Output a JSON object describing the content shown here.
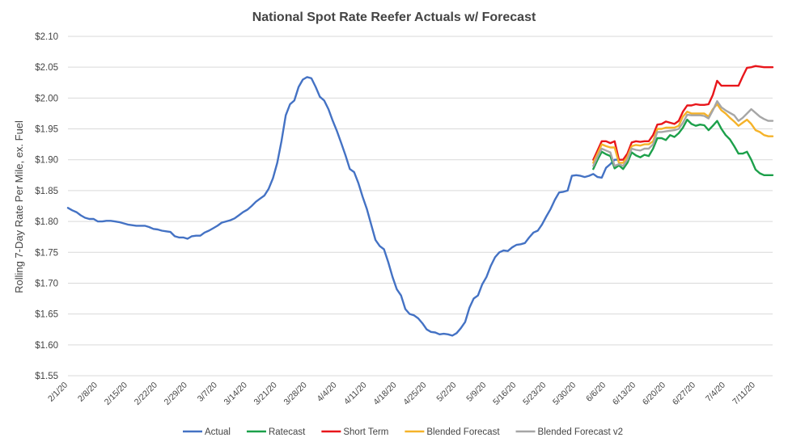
{
  "chart_data": {
    "type": "line",
    "title": "National Spot Rate Reefer Actuals w/ Forecast",
    "ylabel": "Rolling 7-Day Rate Per Mile, ex. Fuel",
    "xlabel": "",
    "ylim": [
      1.55,
      2.1
    ],
    "yticks": [
      1.55,
      1.6,
      1.65,
      1.7,
      1.75,
      1.8,
      1.85,
      1.9,
      1.95,
      2.0,
      2.05,
      2.1
    ],
    "ytick_labels": [
      "$1.55",
      "$1.60",
      "$1.65",
      "$1.70",
      "$1.75",
      "$1.80",
      "$1.85",
      "$1.90",
      "$1.95",
      "$2.00",
      "$2.05",
      "$2.10"
    ],
    "x_start": "2/1/20",
    "x_end": "7/15/20",
    "xtick_labels": [
      "2/1/20",
      "2/8/20",
      "2/15/20",
      "2/22/20",
      "2/29/20",
      "3/7/20",
      "3/14/20",
      "3/21/20",
      "3/28/20",
      "4/4/20",
      "4/11/20",
      "4/18/20",
      "4/25/20",
      "5/2/20",
      "5/9/20",
      "5/16/20",
      "5/23/20",
      "5/30/20",
      "6/6/20",
      "6/13/20",
      "6/20/20",
      "6/27/20",
      "7/4/20",
      "7/11/20"
    ],
    "grid": true,
    "legend_position": "bottom",
    "series": [
      {
        "name": "Actual",
        "color": "#4472c4",
        "x": [
          "2/1/20",
          "2/2/20",
          "2/3/20",
          "2/4/20",
          "2/5/20",
          "2/6/20",
          "2/7/20",
          "2/8/20",
          "2/9/20",
          "2/10/20",
          "2/11/20",
          "2/12/20",
          "2/13/20",
          "2/14/20",
          "2/15/20",
          "2/16/20",
          "2/17/20",
          "2/18/20",
          "2/19/20",
          "2/20/20",
          "2/21/20",
          "2/22/20",
          "2/23/20",
          "2/24/20",
          "2/25/20",
          "2/26/20",
          "2/27/20",
          "2/28/20",
          "2/29/20",
          "3/1/20",
          "3/2/20",
          "3/3/20",
          "3/4/20",
          "3/5/20",
          "3/6/20",
          "3/7/20",
          "3/8/20",
          "3/9/20",
          "3/10/20",
          "3/11/20",
          "3/12/20",
          "3/13/20",
          "3/14/20",
          "3/15/20",
          "3/16/20",
          "3/17/20",
          "3/18/20",
          "3/19/20",
          "3/20/20",
          "3/21/20",
          "3/22/20",
          "3/23/20",
          "3/24/20",
          "3/25/20",
          "3/26/20",
          "3/27/20",
          "3/28/20",
          "3/29/20",
          "3/30/20",
          "3/31/20",
          "4/1/20",
          "4/2/20",
          "4/3/20",
          "4/4/20",
          "4/5/20",
          "4/6/20",
          "4/7/20",
          "4/8/20",
          "4/9/20",
          "4/10/20",
          "4/11/20",
          "4/12/20",
          "4/13/20",
          "4/14/20",
          "4/15/20",
          "4/16/20",
          "4/17/20",
          "4/18/20",
          "4/19/20",
          "4/20/20",
          "4/21/20",
          "4/22/20",
          "4/23/20",
          "4/24/20",
          "4/25/20",
          "4/26/20",
          "4/27/20",
          "4/28/20",
          "4/29/20",
          "4/30/20",
          "5/1/20",
          "5/2/20",
          "5/3/20",
          "5/4/20",
          "5/5/20",
          "5/6/20",
          "5/7/20",
          "5/8/20",
          "5/9/20",
          "5/10/20",
          "5/11/20",
          "5/12/20",
          "5/13/20",
          "5/14/20",
          "5/15/20",
          "5/16/20",
          "5/17/20",
          "5/18/20",
          "5/19/20",
          "5/20/20",
          "5/21/20",
          "5/22/20",
          "5/23/20",
          "5/24/20",
          "5/25/20",
          "5/26/20",
          "5/27/20",
          "5/28/20",
          "5/29/20",
          "5/30/20",
          "5/31/20",
          "6/1/20",
          "6/2/20",
          "6/3/20",
          "6/4/20",
          "6/5/20",
          "6/6/20",
          "6/7/20",
          "6/8/20",
          "6/9/20"
        ],
        "values": [
          1.822,
          1.818,
          1.815,
          1.81,
          1.806,
          1.804,
          1.804,
          1.8,
          1.8,
          1.801,
          1.801,
          1.8,
          1.799,
          1.797,
          1.795,
          1.794,
          1.793,
          1.793,
          1.793,
          1.791,
          1.788,
          1.787,
          1.785,
          1.784,
          1.783,
          1.776,
          1.774,
          1.774,
          1.772,
          1.776,
          1.777,
          1.777,
          1.782,
          1.785,
          1.789,
          1.793,
          1.798,
          1.8,
          1.802,
          1.805,
          1.81,
          1.815,
          1.819,
          1.825,
          1.832,
          1.837,
          1.842,
          1.853,
          1.87,
          1.895,
          1.93,
          1.972,
          1.99,
          1.996,
          2.018,
          2.03,
          2.034,
          2.032,
          2.018,
          2.002,
          1.996,
          1.982,
          1.963,
          1.946,
          1.927,
          1.907,
          1.885,
          1.88,
          1.862,
          1.84,
          1.82,
          1.795,
          1.77,
          1.76,
          1.755,
          1.734,
          1.71,
          1.69,
          1.68,
          1.658,
          1.65,
          1.648,
          1.643,
          1.635,
          1.625,
          1.621,
          1.62,
          1.617,
          1.618,
          1.617,
          1.615,
          1.619,
          1.627,
          1.637,
          1.66,
          1.675,
          1.68,
          1.698,
          1.71,
          1.728,
          1.742,
          1.75,
          1.753,
          1.752,
          1.758,
          1.762,
          1.763,
          1.765,
          1.774,
          1.782,
          1.785,
          1.795,
          1.808,
          1.82,
          1.835,
          1.847,
          1.848,
          1.85,
          1.874,
          1.875,
          1.874,
          1.872,
          1.874,
          1.877,
          1.872,
          1.871,
          1.887,
          1.893,
          1.9,
          1.9
        ]
      },
      {
        "name": "Ratecast",
        "color": "#1ca04a",
        "x": [
          "6/3/20",
          "6/4/20",
          "6/5/20",
          "6/6/20",
          "6/7/20",
          "6/8/20",
          "6/9/20",
          "6/10/20",
          "6/11/20",
          "6/12/20",
          "6/13/20",
          "6/14/20",
          "6/15/20",
          "6/16/20",
          "6/17/20",
          "6/18/20",
          "6/19/20",
          "6/20/20",
          "6/21/20",
          "6/22/20",
          "6/23/20",
          "6/24/20",
          "6/25/20",
          "6/26/20",
          "6/27/20",
          "6/28/20",
          "6/29/20",
          "6/30/20",
          "7/1/20",
          "7/2/20",
          "7/3/20",
          "7/4/20",
          "7/5/20",
          "7/6/20",
          "7/7/20",
          "7/8/20",
          "7/9/20",
          "7/10/20",
          "7/11/20",
          "7/12/20",
          "7/13/20",
          "7/14/20",
          "7/15/20"
        ],
        "values": [
          1.885,
          1.9,
          1.913,
          1.909,
          1.906,
          1.886,
          1.891,
          1.885,
          1.895,
          1.912,
          1.907,
          1.904,
          1.908,
          1.906,
          1.918,
          1.935,
          1.935,
          1.932,
          1.94,
          1.937,
          1.943,
          1.952,
          1.965,
          1.958,
          1.955,
          1.957,
          1.956,
          1.948,
          1.955,
          1.963,
          1.95,
          1.94,
          1.933,
          1.922,
          1.91,
          1.91,
          1.913,
          1.9,
          1.884,
          1.878,
          1.875,
          1.875,
          1.875
        ]
      },
      {
        "name": "Short Term",
        "color": "#e8161b",
        "x": [
          "6/3/20",
          "6/4/20",
          "6/5/20",
          "6/6/20",
          "6/7/20",
          "6/8/20",
          "6/9/20",
          "6/10/20",
          "6/11/20",
          "6/12/20",
          "6/13/20",
          "6/14/20",
          "6/15/20",
          "6/16/20",
          "6/17/20",
          "6/18/20",
          "6/19/20",
          "6/20/20",
          "6/21/20",
          "6/22/20",
          "6/23/20",
          "6/24/20",
          "6/25/20",
          "6/26/20",
          "6/27/20",
          "6/28/20",
          "6/29/20",
          "6/30/20",
          "7/1/20",
          "7/2/20",
          "7/3/20",
          "7/4/20",
          "7/5/20",
          "7/6/20",
          "7/7/20",
          "7/8/20",
          "7/9/20",
          "7/10/20",
          "7/11/20",
          "7/12/20",
          "7/13/20",
          "7/14/20",
          "7/15/20"
        ],
        "values": [
          1.9,
          1.915,
          1.93,
          1.93,
          1.927,
          1.93,
          1.9,
          1.9,
          1.91,
          1.928,
          1.93,
          1.929,
          1.93,
          1.93,
          1.94,
          1.957,
          1.958,
          1.962,
          1.96,
          1.958,
          1.963,
          1.978,
          1.988,
          1.988,
          1.99,
          1.989,
          1.989,
          1.99,
          2.005,
          2.028,
          2.02,
          2.02,
          2.02,
          2.02,
          2.02,
          2.035,
          2.049,
          2.05,
          2.052,
          2.051,
          2.05,
          2.05,
          2.05
        ]
      },
      {
        "name": "Blended Forecast",
        "color": "#f5b32a",
        "x": [
          "6/3/20",
          "6/4/20",
          "6/5/20",
          "6/6/20",
          "6/7/20",
          "6/8/20",
          "6/9/20",
          "6/10/20",
          "6/11/20",
          "6/12/20",
          "6/13/20",
          "6/14/20",
          "6/15/20",
          "6/16/20",
          "6/17/20",
          "6/18/20",
          "6/19/20",
          "6/20/20",
          "6/21/20",
          "6/22/20",
          "6/23/20",
          "6/24/20",
          "6/25/20",
          "6/26/20",
          "6/27/20",
          "6/28/20",
          "6/29/20",
          "6/30/20",
          "7/1/20",
          "7/2/20",
          "7/3/20",
          "7/4/20",
          "7/5/20",
          "7/6/20",
          "7/7/20",
          "7/8/20",
          "7/9/20",
          "7/10/20",
          "7/11/20",
          "7/12/20",
          "7/13/20",
          "7/14/20",
          "7/15/20"
        ],
        "values": [
          1.895,
          1.91,
          1.925,
          1.922,
          1.92,
          1.92,
          1.895,
          1.895,
          1.905,
          1.922,
          1.924,
          1.923,
          1.925,
          1.925,
          1.93,
          1.95,
          1.95,
          1.952,
          1.952,
          1.952,
          1.955,
          1.97,
          1.978,
          1.975,
          1.975,
          1.975,
          1.975,
          1.97,
          1.982,
          1.99,
          1.98,
          1.975,
          1.968,
          1.962,
          1.955,
          1.96,
          1.965,
          1.958,
          1.948,
          1.945,
          1.94,
          1.938,
          1.938
        ]
      },
      {
        "name": "Blended Forecast v2",
        "color": "#a6a6a6",
        "x": [
          "6/3/20",
          "6/4/20",
          "6/5/20",
          "6/6/20",
          "6/7/20",
          "6/8/20",
          "6/9/20",
          "6/10/20",
          "6/11/20",
          "6/12/20",
          "6/13/20",
          "6/14/20",
          "6/15/20",
          "6/16/20",
          "6/17/20",
          "6/18/20",
          "6/19/20",
          "6/20/20",
          "6/21/20",
          "6/22/20",
          "6/23/20",
          "6/24/20",
          "6/25/20",
          "6/26/20",
          "6/27/20",
          "6/28/20",
          "6/29/20",
          "6/30/20",
          "7/1/20",
          "7/2/20",
          "7/3/20",
          "7/4/20",
          "7/5/20",
          "7/6/20",
          "7/7/20",
          "7/8/20",
          "7/9/20",
          "7/10/20",
          "7/11/20",
          "7/12/20",
          "7/13/20",
          "7/14/20",
          "7/15/20"
        ],
        "values": [
          1.89,
          1.905,
          1.918,
          1.915,
          1.912,
          1.89,
          1.893,
          1.89,
          1.9,
          1.918,
          1.916,
          1.915,
          1.918,
          1.918,
          1.925,
          1.945,
          1.945,
          1.946,
          1.947,
          1.948,
          1.95,
          1.96,
          1.973,
          1.972,
          1.972,
          1.972,
          1.971,
          1.967,
          1.98,
          1.995,
          1.985,
          1.98,
          1.976,
          1.972,
          1.963,
          1.968,
          1.975,
          1.982,
          1.976,
          1.97,
          1.966,
          1.963,
          1.963
        ]
      }
    ]
  }
}
